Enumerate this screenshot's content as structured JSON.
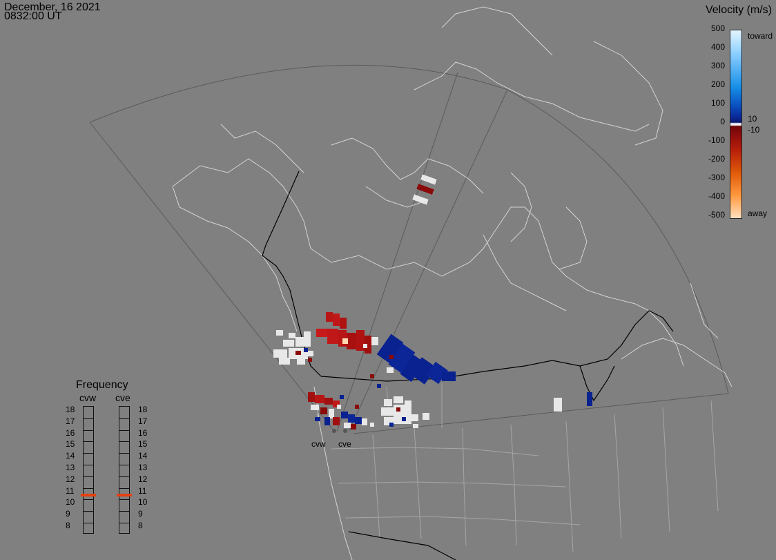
{
  "header": {
    "date": "December, 16 2021",
    "time": "0832:00 UT"
  },
  "colorbar": {
    "title": "Velocity (m/s)",
    "ticks": [
      "500",
      "400",
      "300",
      "200",
      "100",
      "0",
      "-100",
      "-200",
      "-300",
      "-400",
      "-500"
    ],
    "toward_label": "toward",
    "away_label": "away",
    "gate_pos_label": "10",
    "gate_neg_label": "-10",
    "colors": {
      "toward_top": "#d8f0ff",
      "toward_mid": "#1890e8",
      "toward_low": "#0a2a9a",
      "near_zero": "#e8e8e8",
      "away_low": "#8a0a0a",
      "away_mid": "#e05a0a",
      "away_bottom": "#ffd8b0"
    }
  },
  "frequency": {
    "title": "Frequency",
    "radars": [
      "cvw",
      "cve"
    ],
    "levels": [
      "18",
      "17",
      "16",
      "15",
      "14",
      "13",
      "12",
      "11",
      "10",
      "9",
      "8"
    ],
    "selected": [
      10.9,
      10.9
    ],
    "marker_color": "#e84010"
  },
  "map": {
    "radar_sites": [
      "cvw",
      "cve"
    ],
    "coast_color": "#d0d0d0",
    "state_color": "#a8a8a8",
    "border_color": "#000000",
    "fov_color": "#585858"
  }
}
